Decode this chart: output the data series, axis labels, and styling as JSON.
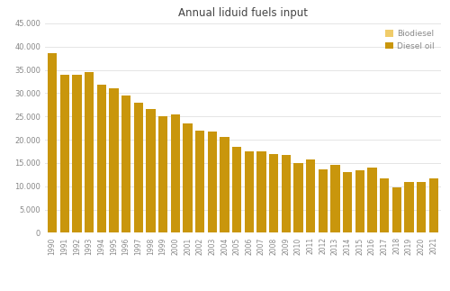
{
  "title": "Annual liduid fuels input",
  "years": [
    1990,
    1991,
    1992,
    1993,
    1994,
    1995,
    1996,
    1997,
    1998,
    1999,
    2000,
    2001,
    2002,
    2003,
    2004,
    2005,
    2006,
    2007,
    2008,
    2009,
    2010,
    2011,
    2012,
    2013,
    2014,
    2015,
    2016,
    2017,
    2018,
    2019,
    2020,
    2021
  ],
  "diesel_oil": [
    38500,
    34000,
    34000,
    34500,
    31800,
    31100,
    29500,
    28000,
    26600,
    25000,
    25500,
    23400,
    22000,
    21800,
    20500,
    18400,
    17500,
    17400,
    17000,
    16700,
    15000,
    15700,
    13600,
    14500,
    13000,
    13400,
    14000,
    11600,
    9700,
    11000,
    11000,
    11700
  ],
  "biodiesel": [
    0,
    0,
    0,
    0,
    0,
    0,
    0,
    0,
    0,
    0,
    0,
    0,
    0,
    0,
    0,
    0,
    0,
    0,
    0,
    0,
    0,
    0,
    0,
    0,
    0,
    0,
    0,
    0,
    0,
    0,
    0,
    0
  ],
  "diesel_color": "#C9960C",
  "biodiesel_color": "#F0CC6A",
  "background_color": "#FFFFFF",
  "grid_color": "#E5E5E5",
  "ylim": [
    0,
    45000
  ],
  "yticks": [
    0,
    5000,
    10000,
    15000,
    20000,
    25000,
    30000,
    35000,
    40000,
    45000
  ]
}
